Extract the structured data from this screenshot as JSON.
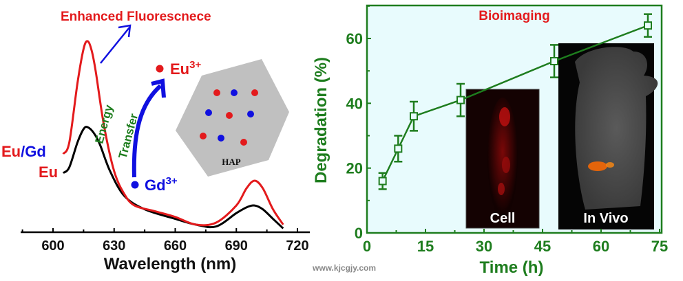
{
  "chart_data": [
    {
      "type": "line",
      "title": "Enhanced Fluorescnece",
      "xlabel": "Wavelength (nm)",
      "ylabel": "",
      "xlim": [
        585,
        722
      ],
      "ylim": [
        0,
        1
      ],
      "xticks": [
        "600",
        "630",
        "660",
        "690",
        "720"
      ],
      "grid": false,
      "series": [
        {
          "name": "Eu/Gd",
          "color": "#e31a1c",
          "x": [
            605,
            608,
            612,
            615,
            617,
            619,
            621,
            625,
            630,
            635,
            640,
            650,
            660,
            670,
            680,
            690,
            695,
            699,
            703,
            708,
            713
          ],
          "y": [
            0.41,
            0.47,
            0.78,
            0.96,
            1.0,
            0.95,
            0.84,
            0.56,
            0.32,
            0.2,
            0.14,
            0.11,
            0.08,
            0.04,
            0.05,
            0.14,
            0.23,
            0.27,
            0.23,
            0.12,
            0.04
          ]
        },
        {
          "name": "Eu",
          "color": "#000000",
          "x": [
            605,
            608,
            612,
            615,
            617,
            620,
            623,
            628,
            635,
            645,
            660,
            670,
            680,
            690,
            695,
            699,
            703,
            708,
            713
          ],
          "y": [
            0.31,
            0.34,
            0.47,
            0.54,
            0.55,
            0.52,
            0.46,
            0.32,
            0.19,
            0.12,
            0.07,
            0.04,
            0.03,
            0.1,
            0.13,
            0.14,
            0.12,
            0.07,
            0.02
          ]
        }
      ],
      "legend": [
        {
          "label_a": "Eu",
          "label_sep": "/",
          "label_b": "Gd"
        },
        {
          "label": "Eu"
        }
      ],
      "annotations": {
        "energy": "Energy",
        "transfer": "Transfer",
        "eu_ion": "Eu",
        "gd_ion": "Gd",
        "charge": "3+",
        "hap": "HAP"
      }
    },
    {
      "type": "line",
      "title": "Bioimaging",
      "xlabel": "Time (h)",
      "ylabel": "Degradation (%)",
      "xlim": [
        0,
        75
      ],
      "ylim": [
        0,
        68
      ],
      "xticks": [
        "0",
        "15",
        "30",
        "45",
        "60",
        "75"
      ],
      "yticks": [
        "0",
        "20",
        "40",
        "60"
      ],
      "grid": false,
      "series": [
        {
          "name": "Degradation",
          "color": "#1e7d1e",
          "x": [
            4,
            8,
            12,
            24,
            48,
            72
          ],
          "y": [
            16,
            26,
            36,
            41,
            53,
            64
          ],
          "err": [
            2.5,
            4,
            4.5,
            5,
            5,
            3.5
          ]
        }
      ],
      "insets": {
        "cell": "Cell",
        "in_vivo": "In Vivo"
      }
    }
  ],
  "watermark": "www.kjcgjy.com",
  "colors": {
    "red": "#e31a1c",
    "blue": "#1010e0",
    "green": "#1e7d1e",
    "panel_bg": "#e8fbfd",
    "hap_gray": "#c0c0c0"
  }
}
